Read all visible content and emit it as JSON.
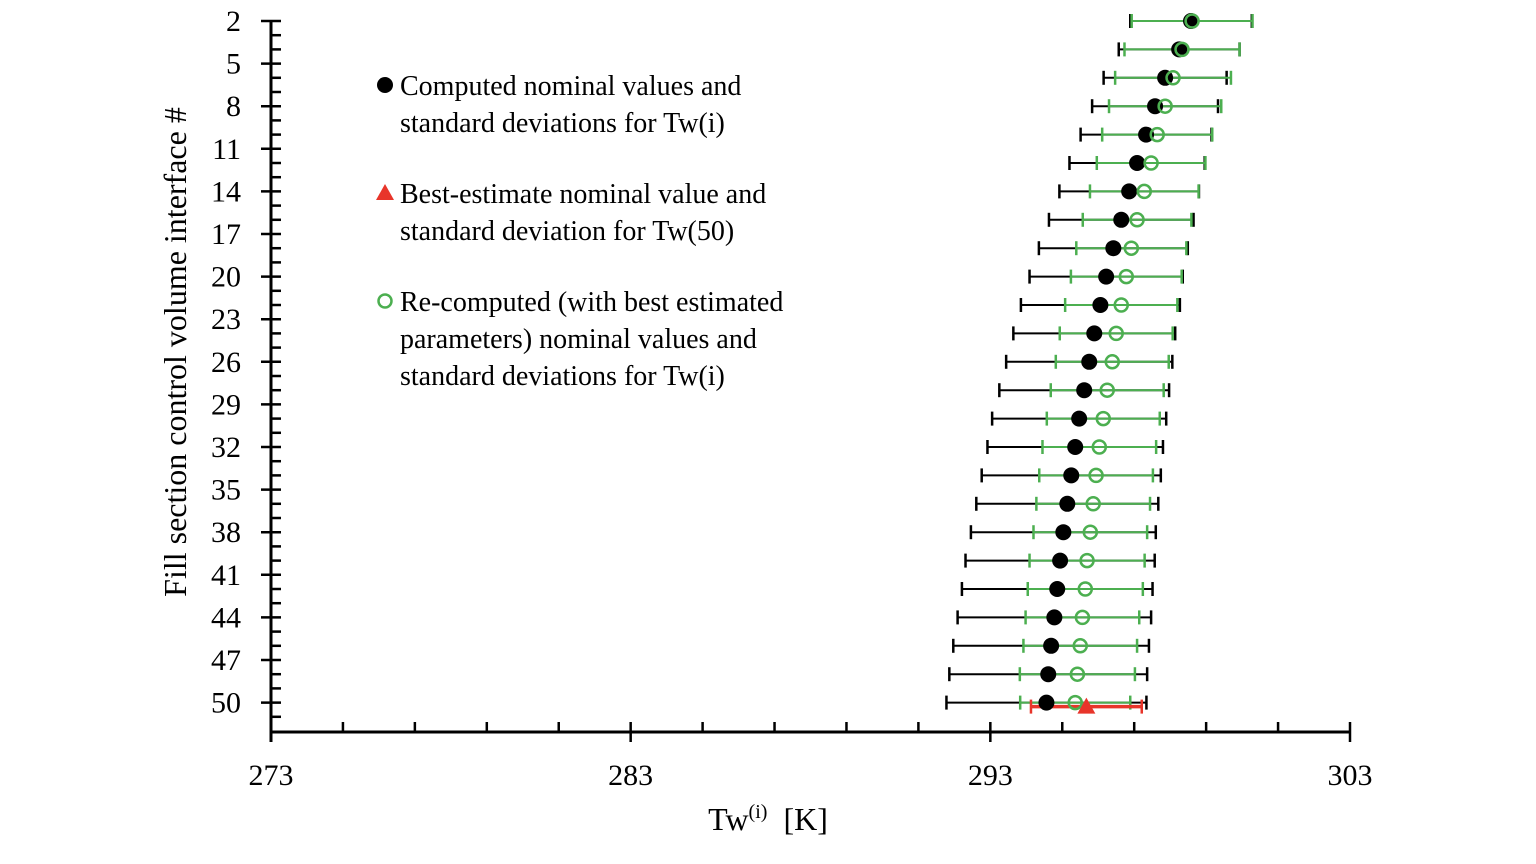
{
  "chart_data": {
    "type": "scatter",
    "xlabel": "Tw",
    "xlabel_superscript": "(i)",
    "xlabel_unit": "[K]",
    "ylabel": "Fill section control volume interface #",
    "xlim": [
      273,
      303
    ],
    "ylim": [
      2,
      52
    ],
    "y_inverted": true,
    "x_ticks": [
      "273",
      "283",
      "293",
      "303"
    ],
    "y_ticks": [
      "2",
      "5",
      "8",
      "11",
      "14",
      "17",
      "20",
      "23",
      "26",
      "29",
      "32",
      "35",
      "38",
      "41",
      "44",
      "47",
      "50"
    ],
    "grid": false,
    "legend_placement": "top-left",
    "colors": {
      "computed": "#000000",
      "best_estimate": "#e8352a",
      "recomputed": "#4caf50"
    },
    "series": [
      {
        "name": "Computed nominal values and standard deviations for Tw(i)",
        "legend_lines": [
          "Computed nominal values and",
          "standard deviations for Tw(i)"
        ],
        "marker": "filled-circle",
        "y": [
          2,
          4,
          6,
          8,
          10,
          12,
          14,
          16,
          18,
          20,
          22,
          24,
          26,
          28,
          30,
          32,
          34,
          36,
          38,
          40,
          42,
          44,
          46,
          48,
          50
        ],
        "x": [
          298.58,
          298.25,
          297.86,
          297.58,
          297.33,
          297.08,
          296.86,
          296.64,
          296.42,
          296.22,
          296.06,
          295.89,
          295.75,
          295.61,
          295.47,
          295.36,
          295.25,
          295.14,
          295.03,
          294.94,
          294.86,
          294.78,
          294.69,
          294.61,
          294.56
        ],
        "sd": [
          1.69,
          1.68,
          1.71,
          1.75,
          1.82,
          1.88,
          1.94,
          2.01,
          2.07,
          2.13,
          2.21,
          2.25,
          2.31,
          2.36,
          2.42,
          2.44,
          2.49,
          2.53,
          2.57,
          2.63,
          2.65,
          2.69,
          2.72,
          2.75,
          2.78
        ]
      },
      {
        "name": "Best-estimate nominal value and standard deviation for Tw(50)",
        "legend_lines": [
          "Best-estimate nominal value and",
          "standard deviation for Tw(50)"
        ],
        "marker": "filled-triangle",
        "y": [
          50
        ],
        "x": [
          295.67
        ],
        "sd": [
          1.54
        ]
      },
      {
        "name": "Re-computed (with best estimated parameters) nominal values and standard deviations for Tw(i)",
        "legend_lines": [
          "Re-computed (with best estimated",
          "parameters) nominal values and",
          "standard deviations for Tw(i)"
        ],
        "marker": "open-circle",
        "y": [
          2,
          4,
          6,
          8,
          10,
          12,
          14,
          16,
          18,
          20,
          22,
          24,
          26,
          28,
          30,
          32,
          34,
          36,
          38,
          40,
          42,
          44,
          46,
          48,
          50
        ],
        "x": [
          298.61,
          298.33,
          298.08,
          297.86,
          297.64,
          297.47,
          297.28,
          297.08,
          296.92,
          296.78,
          296.64,
          296.5,
          296.39,
          296.25,
          296.14,
          296.03,
          295.94,
          295.86,
          295.78,
          295.69,
          295.64,
          295.56,
          295.5,
          295.42,
          295.36
        ],
        "sd": [
          1.68,
          1.6,
          1.61,
          1.56,
          1.53,
          1.51,
          1.51,
          1.51,
          1.53,
          1.54,
          1.56,
          1.57,
          1.57,
          1.57,
          1.57,
          1.58,
          1.58,
          1.58,
          1.58,
          1.6,
          1.6,
          1.58,
          1.58,
          1.6,
          1.53
        ]
      }
    ]
  }
}
